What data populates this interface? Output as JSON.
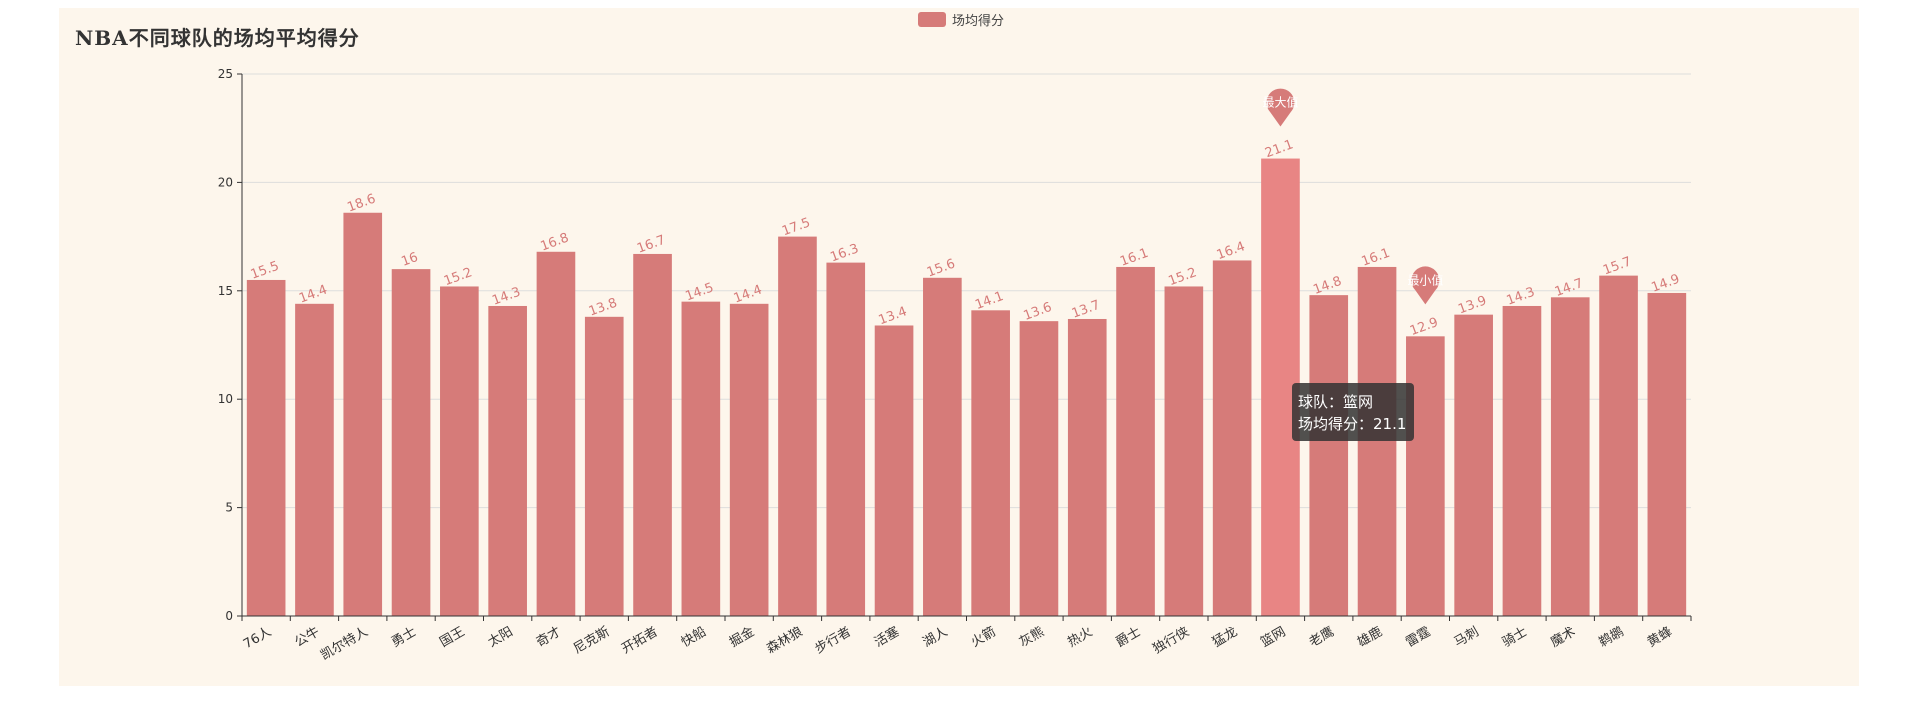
{
  "chart_data": {
    "type": "bar",
    "title": "NBA不同球队的场均平均得分",
    "legend": [
      "场均得分"
    ],
    "legend_position": "top-center",
    "series": [
      {
        "name": "场均得分",
        "values": [
          15.5,
          14.4,
          18.6,
          16,
          15.2,
          14.3,
          16.8,
          13.8,
          16.7,
          14.5,
          14.4,
          17.5,
          16.3,
          13.4,
          15.6,
          14.1,
          13.6,
          13.7,
          16.1,
          15.2,
          16.4,
          21.1,
          14.8,
          16.1,
          12.9,
          13.9,
          14.3,
          14.7,
          15.7,
          14.9
        ]
      }
    ],
    "categories": [
      "76人",
      "公牛",
      "凯尔特人",
      "勇士",
      "国王",
      "太阳",
      "奇才",
      "尼克斯",
      "开拓者",
      "快船",
      "掘金",
      "森林狼",
      "步行者",
      "活塞",
      "湖人",
      "火箭",
      "灰熊",
      "热火",
      "爵士",
      "独行侠",
      "猛龙",
      "篮网",
      "老鹰",
      "雄鹿",
      "雷霆",
      "马刺",
      "骑士",
      "魔术",
      "鹈鹕",
      "黄蜂"
    ],
    "ylim": [
      0,
      25
    ],
    "yticks": [
      0,
      5,
      10,
      15,
      20,
      25
    ],
    "grid": true,
    "mark_points": [
      {
        "label": "最大值",
        "category": "篮网",
        "value": 21.1
      },
      {
        "label": "最小值",
        "category": "雷霆",
        "value": 12.9
      }
    ],
    "highlighted_category": "篮网"
  },
  "tooltip": {
    "line1": "球队：篮网",
    "line2": "场均得分：21.1"
  },
  "colors": {
    "bar": "#d67b79",
    "bar_highlight": "#e88584",
    "label": "#d67b79",
    "axis": "#333333",
    "grid": "#dddddd",
    "background": "#fdf6ec"
  }
}
